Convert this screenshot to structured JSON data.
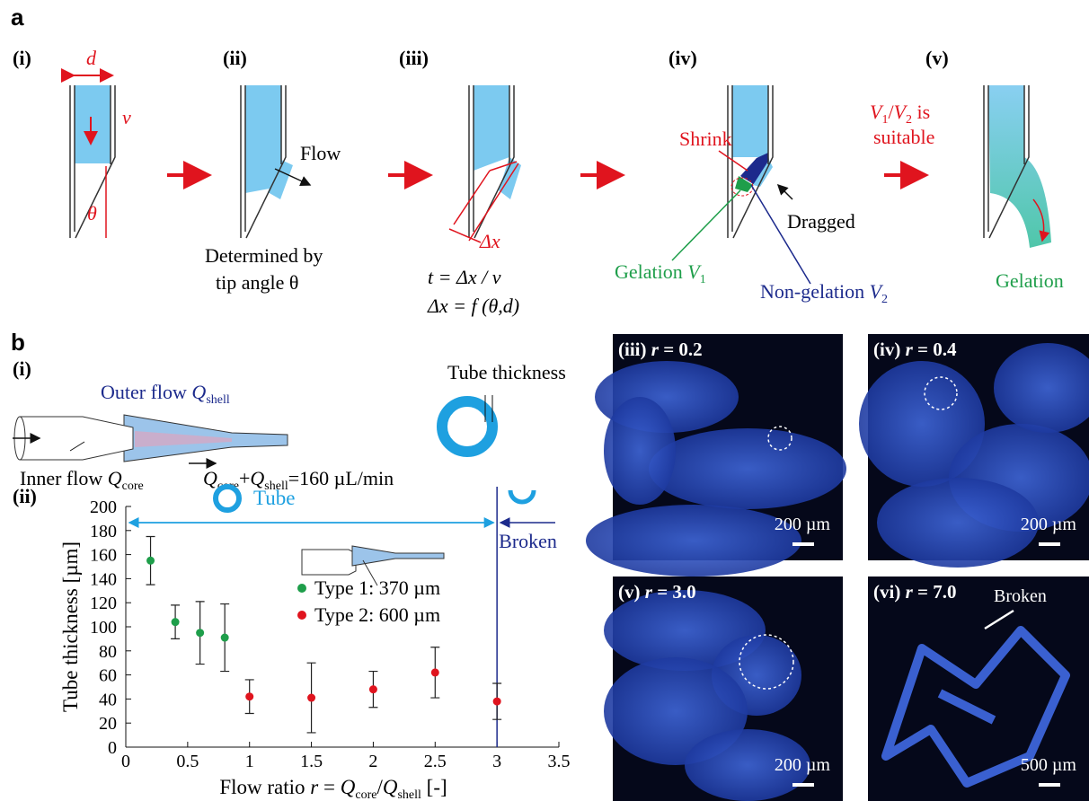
{
  "panel_a": {
    "label": "a",
    "steps": [
      "(i)",
      "(ii)",
      "(iii)",
      "(iv)",
      "(v)"
    ],
    "d": "d",
    "v": "v",
    "theta": "θ",
    "flow": "Flow",
    "caption_ii": [
      "Determined by",
      "tip angle θ"
    ],
    "dx": "Δx",
    "caption_iii": [
      "t = Δx / v",
      "Δx = f (θ,d)"
    ],
    "shrink": "Shrink",
    "dragged": "Dragged",
    "gelation_v1": [
      "Gelation ",
      "V",
      "1"
    ],
    "non_gelation_v2": [
      "Non-gelation ",
      "V",
      "2"
    ],
    "ratio": [
      "V",
      "1",
      "/",
      "V",
      "2",
      " is"
    ],
    "suitable": "suitable",
    "gelation": "Gelation"
  },
  "panel_b": {
    "label": "b",
    "sub_i": "(i)",
    "sub_ii": "(ii)",
    "outer_flow": [
      "Outer flow ",
      "Q",
      "shell"
    ],
    "inner_flow": [
      "Inner flow ",
      "Q",
      "core"
    ],
    "total_flow": [
      "Q",
      "core",
      "+",
      "Q",
      "shell",
      "=160 µL/min"
    ],
    "tube_thickness": "Tube thickness",
    "images": [
      {
        "label": [
          "(iii) ",
          "r",
          " = 0.2"
        ],
        "scale": "200 µm"
      },
      {
        "label": [
          "(iv) ",
          "r",
          " = 0.4"
        ],
        "scale": "200 µm"
      },
      {
        "label": [
          "(v) ",
          "r",
          " = 3.0"
        ],
        "scale": "200 µm"
      },
      {
        "label": [
          "(vi) ",
          "r",
          " = 7.0"
        ],
        "scale": "500 µm",
        "note": "Broken"
      }
    ]
  },
  "chart_data": {
    "type": "scatter",
    "x_label": [
      "Flow ratio ",
      "r",
      " = ",
      "Q",
      "core",
      "/",
      "Q",
      "shell",
      " [-]"
    ],
    "y_label": "Tube thickness [µm]",
    "xlim": [
      0,
      3.5
    ],
    "xticks": [
      0,
      0.5,
      1,
      1.5,
      2,
      2.5,
      3,
      3.5
    ],
    "ylim": [
      0,
      200
    ],
    "yticks": [
      0,
      20,
      40,
      60,
      80,
      100,
      120,
      140,
      160,
      180,
      200
    ],
    "boundary": 3,
    "tube_label": "Tube",
    "broken_label": "Broken",
    "series": [
      {
        "name": "Type 1: 370 µm",
        "color": "#1e9e4a",
        "x": [
          0.2,
          0.4,
          0.6,
          0.8
        ],
        "values": [
          155,
          104,
          95,
          91
        ],
        "errors": [
          20,
          14,
          26,
          28
        ]
      },
      {
        "name": "Type 2: 600 µm",
        "color": "#e0141e",
        "x": [
          1,
          1.5,
          2,
          2.5,
          3
        ],
        "values": [
          42,
          41,
          48,
          62,
          38
        ],
        "errors": [
          14,
          29,
          15,
          21,
          15
        ]
      }
    ]
  }
}
